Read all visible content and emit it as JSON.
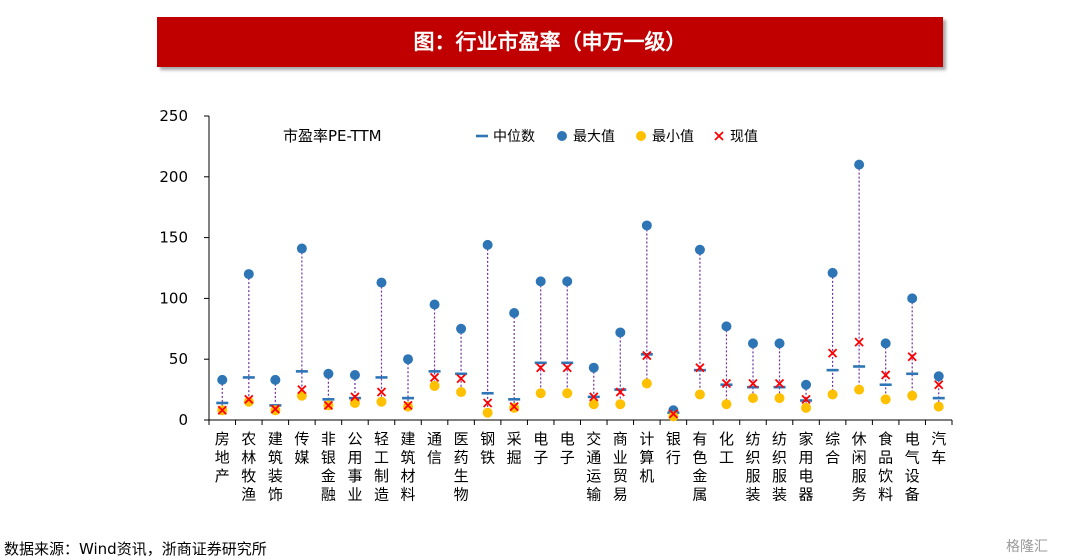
{
  "title": "图：行业市盈率（申万一级）",
  "source": "数据来源：Wind资讯，浙商证券研究所",
  "watermark": "格隆汇",
  "colors": {
    "title_bg": "#c00000",
    "median": "#2e75b6",
    "max": "#2e75b6",
    "min": "#ffc000",
    "current": "#ff0000",
    "range_line": "#7030a0"
  },
  "chart_data": {
    "type": "scatter",
    "title": "市盈率PE-TTM",
    "ylim": [
      0,
      250
    ],
    "yticks": [
      0,
      50,
      100,
      150,
      200,
      250
    ],
    "grid": false,
    "legend_position": "top",
    "legend": [
      {
        "key": "median",
        "label": "中位数",
        "marker": "dash"
      },
      {
        "key": "max",
        "label": "最大值",
        "marker": "circle"
      },
      {
        "key": "min",
        "label": "最小值",
        "marker": "circle"
      },
      {
        "key": "current",
        "label": "现值",
        "marker": "x"
      }
    ],
    "categories": [
      "房地产",
      "农林牧渔",
      "建筑装饰",
      "传媒",
      "非银金融",
      "公用事业",
      "轻工制造",
      "建筑材料",
      "通信",
      "医药生物",
      "钢铁",
      "采掘",
      "电子",
      "电子",
      "交通运输",
      "商业贸易",
      "计算机",
      "银行",
      "有色金属",
      "化工",
      "纺织服装",
      "纺织服装",
      "家用电器",
      "综合",
      "休闲服务",
      "食品饮料",
      "电气设备",
      "汽车"
    ],
    "series": [
      {
        "name": "中位数",
        "key": "median",
        "values": [
          14,
          35,
          12,
          40,
          17,
          18,
          35,
          18,
          40,
          38,
          22,
          17,
          47,
          47,
          19,
          25,
          54,
          6,
          41,
          29,
          27,
          27,
          16,
          41,
          44,
          29,
          38,
          18
        ]
      },
      {
        "name": "最大值",
        "key": "max",
        "values": [
          33,
          120,
          33,
          141,
          38,
          37,
          113,
          50,
          95,
          75,
          144,
          88,
          114,
          114,
          43,
          72,
          160,
          8,
          140,
          77,
          63,
          63,
          29,
          121,
          210,
          63,
          100,
          36
        ]
      },
      {
        "name": "最小值",
        "key": "min",
        "values": [
          8,
          15,
          8,
          20,
          12,
          14,
          15,
          11,
          28,
          23,
          6,
          10,
          22,
          22,
          13,
          13,
          30,
          3,
          21,
          13,
          18,
          18,
          10,
          21,
          25,
          17,
          20,
          11
        ]
      },
      {
        "name": "现值",
        "key": "current",
        "values": [
          8,
          17,
          9,
          25,
          12,
          19,
          23,
          12,
          35,
          34,
          14,
          11,
          43,
          43,
          19,
          23,
          53,
          5,
          43,
          30,
          30,
          30,
          17,
          55,
          64,
          37,
          52,
          29
        ]
      }
    ]
  }
}
